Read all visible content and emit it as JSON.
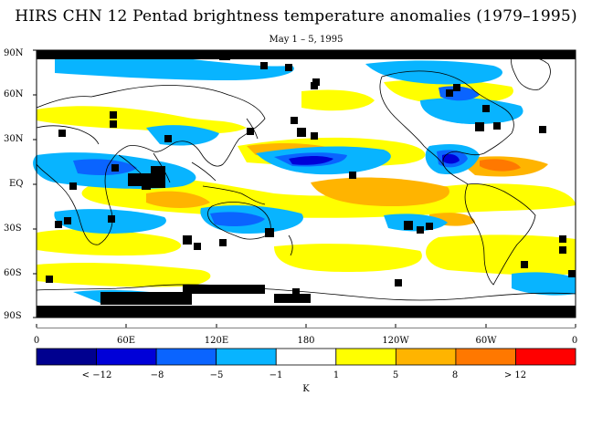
{
  "title": "HIRS CHN 12 Pentad brightness temperature anomalies (1979–1995)",
  "subtitle": "May 1 – 5, 1995",
  "lat_axis": [
    "90N",
    "60N",
    "30N",
    "EQ",
    "30S",
    "60S",
    "90S"
  ],
  "lon_axis": [
    "0",
    "60E",
    "120E",
    "180",
    "120W",
    "60W",
    "0"
  ],
  "colorbar": {
    "colors": [
      "#00008f",
      "#0000d8",
      "#0a64ff",
      "#08b4ff",
      "#ffffff",
      "#ffff00",
      "#ffb400",
      "#ff7800",
      "#ff0000"
    ],
    "labels": [
      "< −12",
      "−8",
      "−5",
      "−1",
      "1",
      "5",
      "8",
      "> 12"
    ],
    "unit": "K"
  },
  "map_colors": {
    "missing": "#000000",
    "coastline": "#000000"
  }
}
